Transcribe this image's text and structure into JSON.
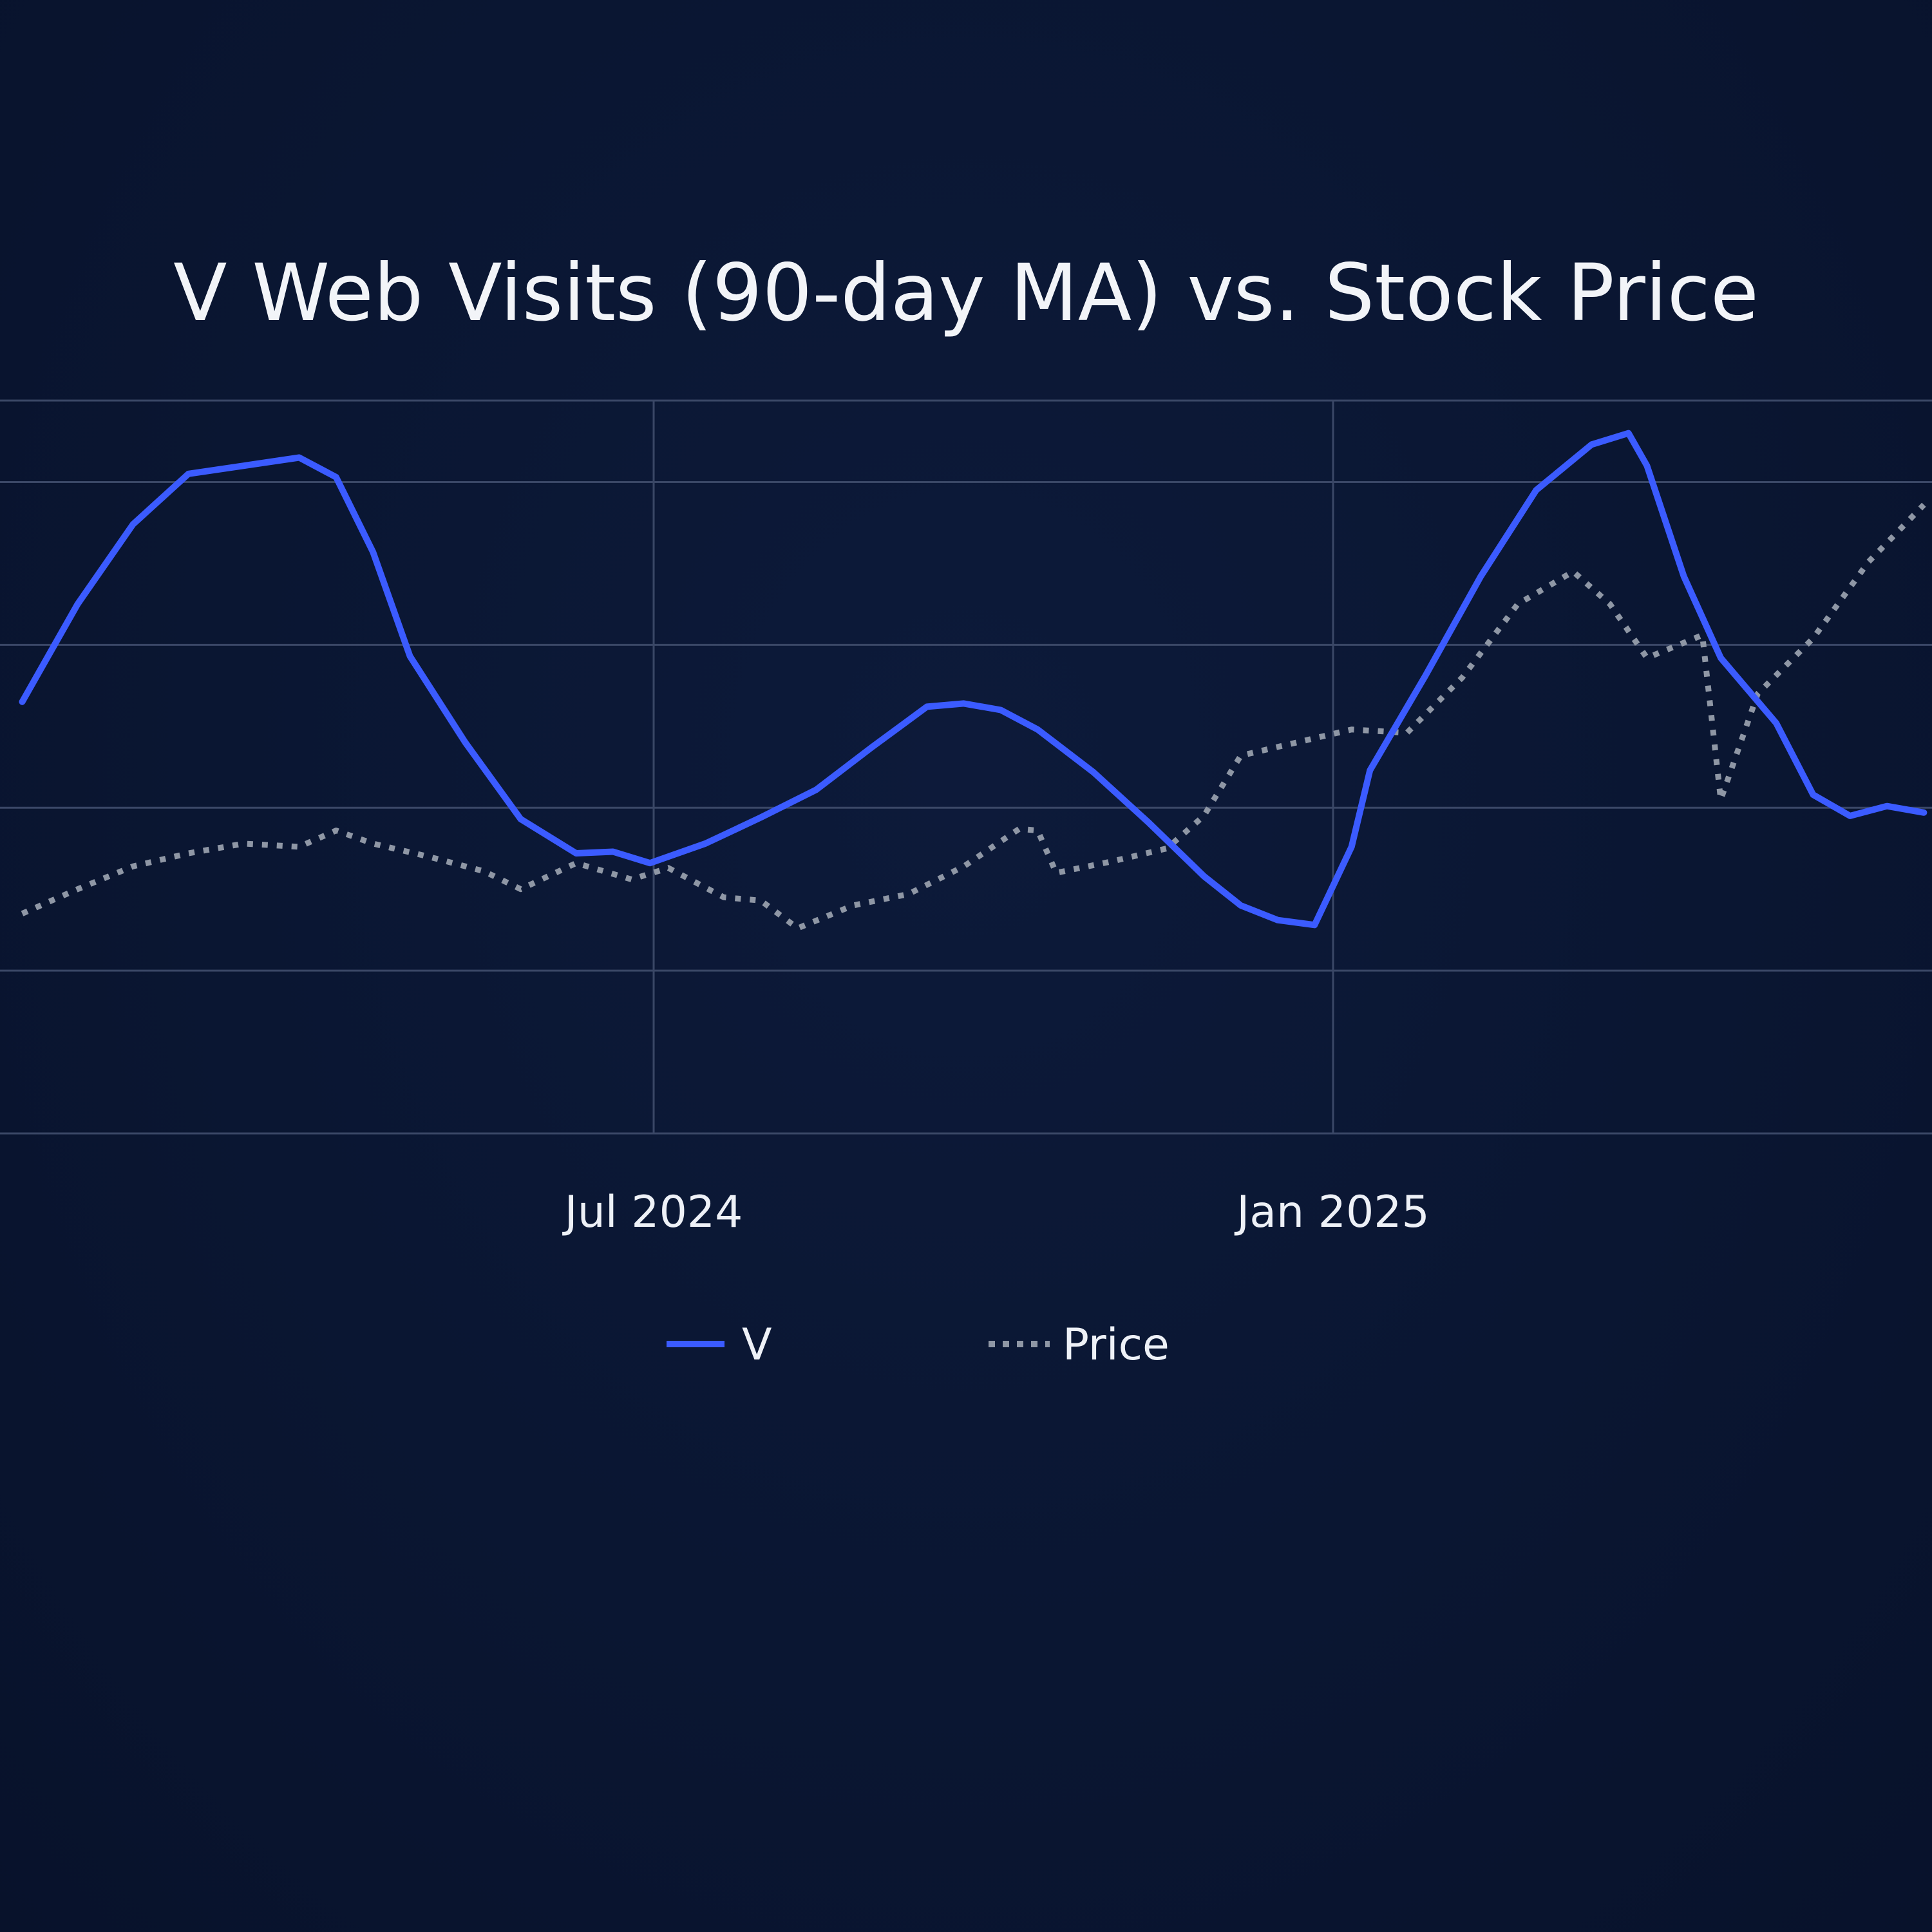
{
  "chart_data": {
    "type": "line",
    "title": "V Web Visits (90-day MA) vs. Stock Price",
    "xlabel": "",
    "ylabel": "",
    "grid": true,
    "legend": "bottom-center",
    "x_ticks": [
      {
        "date": "2024-07-01",
        "label": "Jul 2024"
      },
      {
        "date": "2025-01-01",
        "label": "Jan 2025"
      }
    ],
    "x_range": [
      "2024-01-12",
      "2025-06-10"
    ],
    "series": [
      {
        "name": "V",
        "style": "solid",
        "color": "#3b5bff",
        "points": [
          [
            "2024-01-12",
            3.65
          ],
          [
            "2024-01-27",
            4.25
          ],
          [
            "2024-02-11",
            4.74
          ],
          [
            "2024-02-26",
            5.05
          ],
          [
            "2024-03-12",
            5.1
          ],
          [
            "2024-03-27",
            5.15
          ],
          [
            "2024-04-06",
            5.03
          ],
          [
            "2024-04-16",
            4.57
          ],
          [
            "2024-04-26",
            3.93
          ],
          [
            "2024-05-11",
            3.4
          ],
          [
            "2024-05-26",
            2.93
          ],
          [
            "2024-06-10",
            2.72
          ],
          [
            "2024-06-20",
            2.73
          ],
          [
            "2024-06-30",
            2.66
          ],
          [
            "2024-07-15",
            2.78
          ],
          [
            "2024-07-30",
            2.94
          ],
          [
            "2024-08-14",
            3.11
          ],
          [
            "2024-08-29",
            3.37
          ],
          [
            "2024-09-13",
            3.62
          ],
          [
            "2024-09-23",
            3.64
          ],
          [
            "2024-10-03",
            3.6
          ],
          [
            "2024-10-13",
            3.48
          ],
          [
            "2024-10-28",
            3.22
          ],
          [
            "2024-11-12",
            2.91
          ],
          [
            "2024-11-27",
            2.58
          ],
          [
            "2024-12-07",
            2.4
          ],
          [
            "2024-12-17",
            2.31
          ],
          [
            "2024-12-27",
            2.28
          ],
          [
            "2025-01-06",
            2.76
          ],
          [
            "2025-01-11",
            3.23
          ],
          [
            "2025-01-26",
            3.81
          ],
          [
            "2025-02-10",
            4.42
          ],
          [
            "2025-02-25",
            4.95
          ],
          [
            "2025-03-12",
            5.23
          ],
          [
            "2025-03-22",
            5.3
          ],
          [
            "2025-03-27",
            5.1
          ],
          [
            "2025-04-06",
            4.42
          ],
          [
            "2025-04-16",
            3.92
          ],
          [
            "2025-05-01",
            3.52
          ],
          [
            "2025-05-11",
            3.08
          ],
          [
            "2025-05-21",
            2.95
          ],
          [
            "2025-05-31",
            3.01
          ],
          [
            "2025-06-10",
            2.97
          ]
        ]
      },
      {
        "name": "Price",
        "style": "dotted",
        "color": "#8f97a5",
        "points": [
          [
            "2024-01-12",
            2.35
          ],
          [
            "2024-01-27",
            2.5
          ],
          [
            "2024-02-11",
            2.64
          ],
          [
            "2024-02-26",
            2.72
          ],
          [
            "2024-03-12",
            2.78
          ],
          [
            "2024-03-27",
            2.76
          ],
          [
            "2024-04-06",
            2.86
          ],
          [
            "2024-04-16",
            2.78
          ],
          [
            "2024-05-01",
            2.7
          ],
          [
            "2024-05-16",
            2.61
          ],
          [
            "2024-05-26",
            2.5
          ],
          [
            "2024-06-10",
            2.66
          ],
          [
            "2024-06-25",
            2.56
          ],
          [
            "2024-07-05",
            2.63
          ],
          [
            "2024-07-20",
            2.45
          ],
          [
            "2024-07-30",
            2.43
          ],
          [
            "2024-08-09",
            2.26
          ],
          [
            "2024-08-24",
            2.4
          ],
          [
            "2024-09-08",
            2.47
          ],
          [
            "2024-09-23",
            2.64
          ],
          [
            "2024-10-08",
            2.87
          ],
          [
            "2024-10-13",
            2.86
          ],
          [
            "2024-10-18",
            2.6
          ],
          [
            "2024-11-02",
            2.67
          ],
          [
            "2024-11-17",
            2.75
          ],
          [
            "2024-11-27",
            2.95
          ],
          [
            "2024-12-07",
            3.32
          ],
          [
            "2024-12-22",
            3.4
          ],
          [
            "2025-01-06",
            3.48
          ],
          [
            "2025-01-21",
            3.46
          ],
          [
            "2025-02-05",
            3.8
          ],
          [
            "2025-02-20",
            4.25
          ],
          [
            "2025-03-07",
            4.45
          ],
          [
            "2025-03-17",
            4.25
          ],
          [
            "2025-03-27",
            3.92
          ],
          [
            "2025-04-11",
            4.06
          ],
          [
            "2025-04-16",
            3.05
          ],
          [
            "2025-04-26",
            3.7
          ],
          [
            "2025-05-11",
            4.04
          ],
          [
            "2025-05-26",
            4.51
          ],
          [
            "2025-06-10",
            4.86
          ]
        ]
      }
    ]
  }
}
